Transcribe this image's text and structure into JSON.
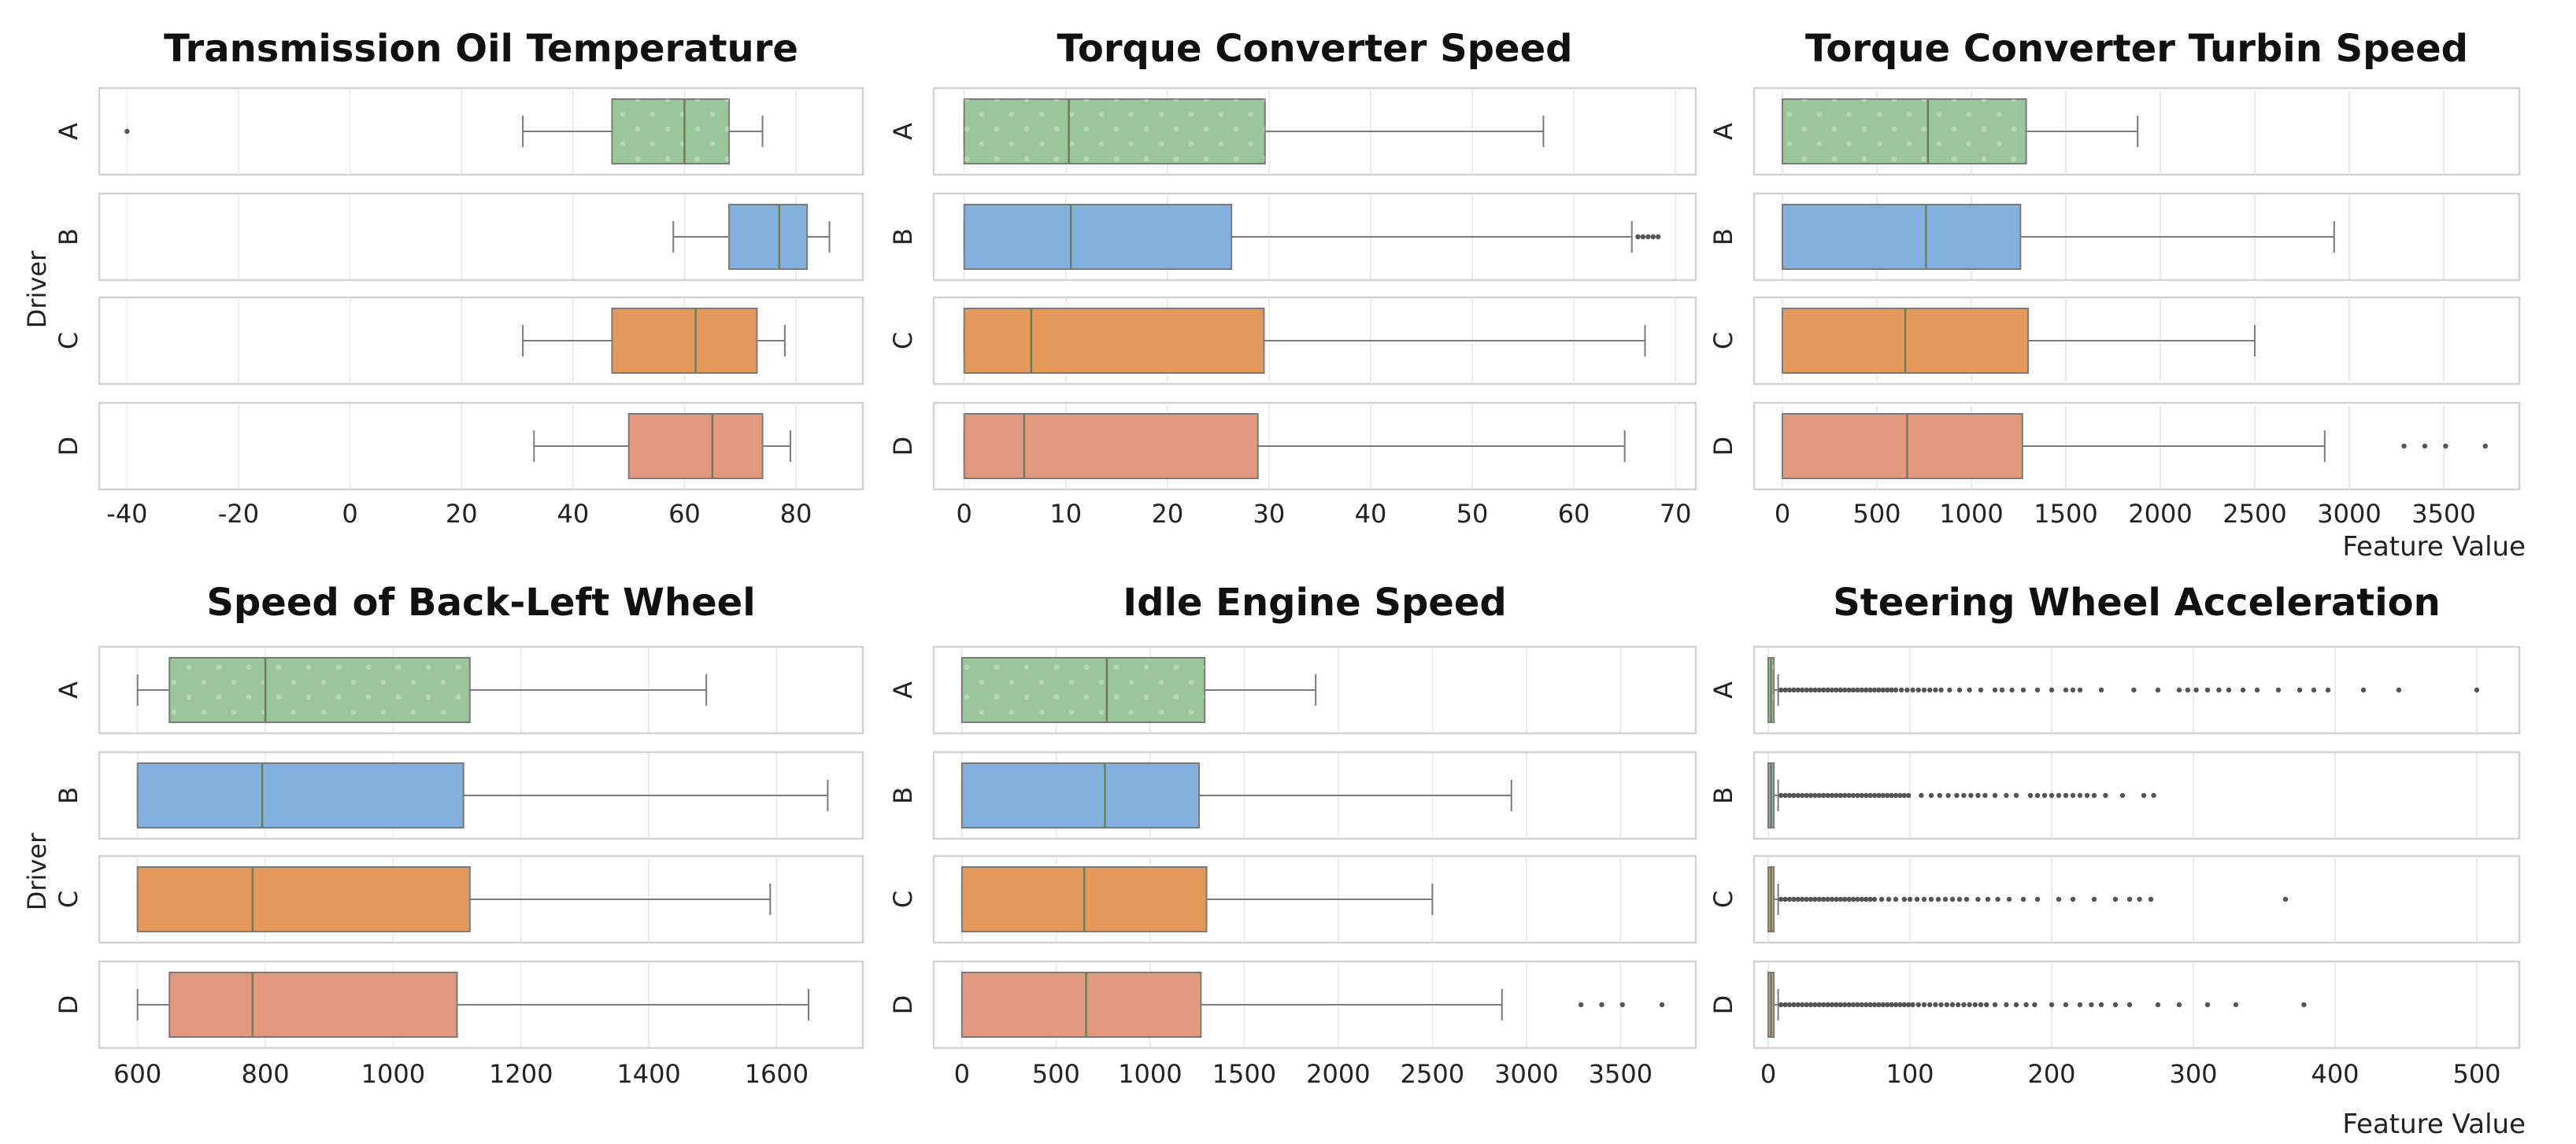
{
  "colors": {
    "A": "#9bc59b",
    "B": "#82b1de",
    "C": "#e4985a",
    "D": "#e39880"
  },
  "labels": {
    "ylabel": "Driver",
    "xlabel": "Feature Value"
  },
  "chart_data": [
    {
      "type": "boxplot",
      "title": "Transmission Oil Temperature",
      "xlim": [
        -45,
        92
      ],
      "xticks": [
        -40,
        -20,
        0,
        20,
        40,
        60,
        80
      ],
      "categories": [
        "A",
        "B",
        "C",
        "D"
      ],
      "series": [
        {
          "name": "A",
          "whisker_low": 31,
          "q1": 47,
          "median": 60,
          "q3": 68,
          "whisker_high": 74,
          "outliers": [
            -40
          ]
        },
        {
          "name": "B",
          "whisker_low": 58,
          "q1": 68,
          "median": 77,
          "q3": 82,
          "whisker_high": 86,
          "outliers": []
        },
        {
          "name": "C",
          "whisker_low": 31,
          "q1": 47,
          "median": 62,
          "q3": 73,
          "whisker_high": 78,
          "outliers": []
        },
        {
          "name": "D",
          "whisker_low": 33,
          "q1": 50,
          "median": 65,
          "q3": 74,
          "whisker_high": 79,
          "outliers": []
        }
      ]
    },
    {
      "type": "boxplot",
      "title": "Torque Converter Speed",
      "xlim": [
        -3,
        72
      ],
      "xticks": [
        0,
        10,
        20,
        30,
        40,
        50,
        60,
        70
      ],
      "categories": [
        "A",
        "B",
        "C",
        "D"
      ],
      "series": [
        {
          "name": "A",
          "whisker_low": 0,
          "q1": 0,
          "median": 10.3,
          "q3": 29.6,
          "whisker_high": 57,
          "outliers": []
        },
        {
          "name": "B",
          "whisker_low": 0,
          "q1": 0,
          "median": 10.5,
          "q3": 26.3,
          "whisker_high": 65.7,
          "outliers": [
            66.3,
            66.8,
            67.3,
            67.8,
            68.3
          ]
        },
        {
          "name": "C",
          "whisker_low": 0,
          "q1": 0,
          "median": 6.6,
          "q3": 29.5,
          "whisker_high": 67,
          "outliers": []
        },
        {
          "name": "D",
          "whisker_low": 0,
          "q1": 0,
          "median": 5.9,
          "q3": 28.9,
          "whisker_high": 65,
          "outliers": []
        }
      ]
    },
    {
      "type": "boxplot",
      "title": "Torque Converter Turbin Speed",
      "xlim": [
        -150,
        3900
      ],
      "xticks": [
        0,
        500,
        1000,
        1500,
        2000,
        2500,
        3000,
        3500
      ],
      "categories": [
        "A",
        "B",
        "C",
        "D"
      ],
      "series": [
        {
          "name": "A",
          "whisker_low": 0,
          "q1": 0,
          "median": 770,
          "q3": 1290,
          "whisker_high": 1880,
          "outliers": []
        },
        {
          "name": "B",
          "whisker_low": 0,
          "q1": 0,
          "median": 760,
          "q3": 1260,
          "whisker_high": 2920,
          "outliers": []
        },
        {
          "name": "C",
          "whisker_low": 0,
          "q1": 0,
          "median": 650,
          "q3": 1300,
          "whisker_high": 2500,
          "outliers": []
        },
        {
          "name": "D",
          "whisker_low": 0,
          "q1": 0,
          "median": 660,
          "q3": 1270,
          "whisker_high": 2870,
          "outliers": [
            3290,
            3400,
            3510,
            3720
          ]
        }
      ]
    },
    {
      "type": "boxplot",
      "title": "Speed of Back-Left Wheel",
      "xlim": [
        540,
        1735
      ],
      "xticks": [
        600,
        800,
        1000,
        1200,
        1400,
        1600
      ],
      "categories": [
        "A",
        "B",
        "C",
        "D"
      ],
      "series": [
        {
          "name": "A",
          "whisker_low": 600,
          "q1": 650,
          "median": 800,
          "q3": 1120,
          "whisker_high": 1490,
          "outliers": []
        },
        {
          "name": "B",
          "whisker_low": 600,
          "q1": 600,
          "median": 795,
          "q3": 1110,
          "whisker_high": 1680,
          "outliers": []
        },
        {
          "name": "C",
          "whisker_low": 600,
          "q1": 600,
          "median": 780,
          "q3": 1120,
          "whisker_high": 1590,
          "outliers": []
        },
        {
          "name": "D",
          "whisker_low": 600,
          "q1": 650,
          "median": 780,
          "q3": 1100,
          "whisker_high": 1650,
          "outliers": []
        }
      ]
    },
    {
      "type": "boxplot",
      "title": "Idle Engine Speed",
      "xlim": [
        -150,
        3900
      ],
      "xticks": [
        0,
        500,
        1000,
        1500,
        2000,
        2500,
        3000,
        3500
      ],
      "categories": [
        "A",
        "B",
        "C",
        "D"
      ],
      "series": [
        {
          "name": "A",
          "whisker_low": 0,
          "q1": 0,
          "median": 770,
          "q3": 1290,
          "whisker_high": 1880,
          "outliers": []
        },
        {
          "name": "B",
          "whisker_low": 0,
          "q1": 0,
          "median": 760,
          "q3": 1260,
          "whisker_high": 2920,
          "outliers": []
        },
        {
          "name": "C",
          "whisker_low": 0,
          "q1": 0,
          "median": 650,
          "q3": 1300,
          "whisker_high": 2500,
          "outliers": []
        },
        {
          "name": "D",
          "whisker_low": 0,
          "q1": 0,
          "median": 660,
          "q3": 1270,
          "whisker_high": 2870,
          "outliers": [
            3290,
            3400,
            3510,
            3720
          ]
        }
      ]
    },
    {
      "type": "boxplot",
      "title": "Steering Wheel Acceleration",
      "xlim": [
        -10,
        530
      ],
      "xticks": [
        0,
        100,
        200,
        300,
        400,
        500
      ],
      "categories": [
        "A",
        "B",
        "C",
        "D"
      ],
      "series": [
        {
          "name": "A",
          "whisker_low": 0,
          "q1": 0,
          "median": 2,
          "q3": 4,
          "whisker_high": 7,
          "outliers": [
            9,
            12,
            15,
            18,
            21,
            24,
            27,
            30,
            33,
            36,
            39,
            42,
            45,
            48,
            51,
            54,
            57,
            60,
            63,
            66,
            69,
            72,
            75,
            78,
            81,
            84,
            87,
            90,
            94,
            98,
            102,
            106,
            110,
            114,
            118,
            122,
            128,
            135,
            142,
            150,
            160,
            165,
            172,
            180,
            190,
            200,
            210,
            215,
            220,
            235,
            258,
            275,
            290,
            296,
            302,
            310,
            318,
            325,
            335,
            345,
            360,
            375,
            385,
            395,
            420,
            445,
            500
          ]
        },
        {
          "name": "B",
          "whisker_low": 0,
          "q1": 0,
          "median": 2,
          "q3": 4,
          "whisker_high": 7,
          "outliers": [
            9,
            12,
            15,
            18,
            21,
            24,
            27,
            30,
            33,
            36,
            39,
            42,
            45,
            48,
            51,
            54,
            57,
            60,
            63,
            66,
            69,
            72,
            75,
            78,
            81,
            84,
            87,
            90,
            93,
            96,
            99,
            108,
            115,
            121,
            127,
            133,
            138,
            143,
            148,
            153,
            160,
            168,
            175,
            185,
            190,
            195,
            200,
            205,
            210,
            215,
            220,
            225,
            230,
            238,
            250,
            265,
            272
          ]
        },
        {
          "name": "C",
          "whisker_low": 0,
          "q1": 0,
          "median": 2,
          "q3": 4,
          "whisker_high": 7,
          "outliers": [
            9,
            12,
            15,
            18,
            21,
            24,
            27,
            30,
            33,
            36,
            39,
            42,
            45,
            48,
            51,
            54,
            57,
            60,
            63,
            66,
            69,
            72,
            75,
            80,
            85,
            90,
            96,
            100,
            105,
            110,
            115,
            120,
            125,
            130,
            135,
            140,
            148,
            155,
            162,
            170,
            180,
            190,
            205,
            215,
            230,
            245,
            255,
            262,
            270,
            365
          ]
        },
        {
          "name": "D",
          "whisker_low": 0,
          "q1": 0,
          "median": 2,
          "q3": 4,
          "whisker_high": 7,
          "outliers": [
            9,
            12,
            15,
            18,
            21,
            24,
            27,
            30,
            33,
            36,
            39,
            42,
            45,
            48,
            51,
            54,
            57,
            60,
            63,
            66,
            69,
            72,
            75,
            78,
            81,
            84,
            87,
            90,
            93,
            96,
            99,
            102,
            106,
            110,
            114,
            118,
            122,
            126,
            130,
            134,
            138,
            142,
            146,
            150,
            154,
            160,
            168,
            175,
            182,
            188,
            200,
            210,
            220,
            228,
            235,
            245,
            255,
            275,
            290,
            310,
            330,
            378
          ]
        }
      ]
    }
  ]
}
